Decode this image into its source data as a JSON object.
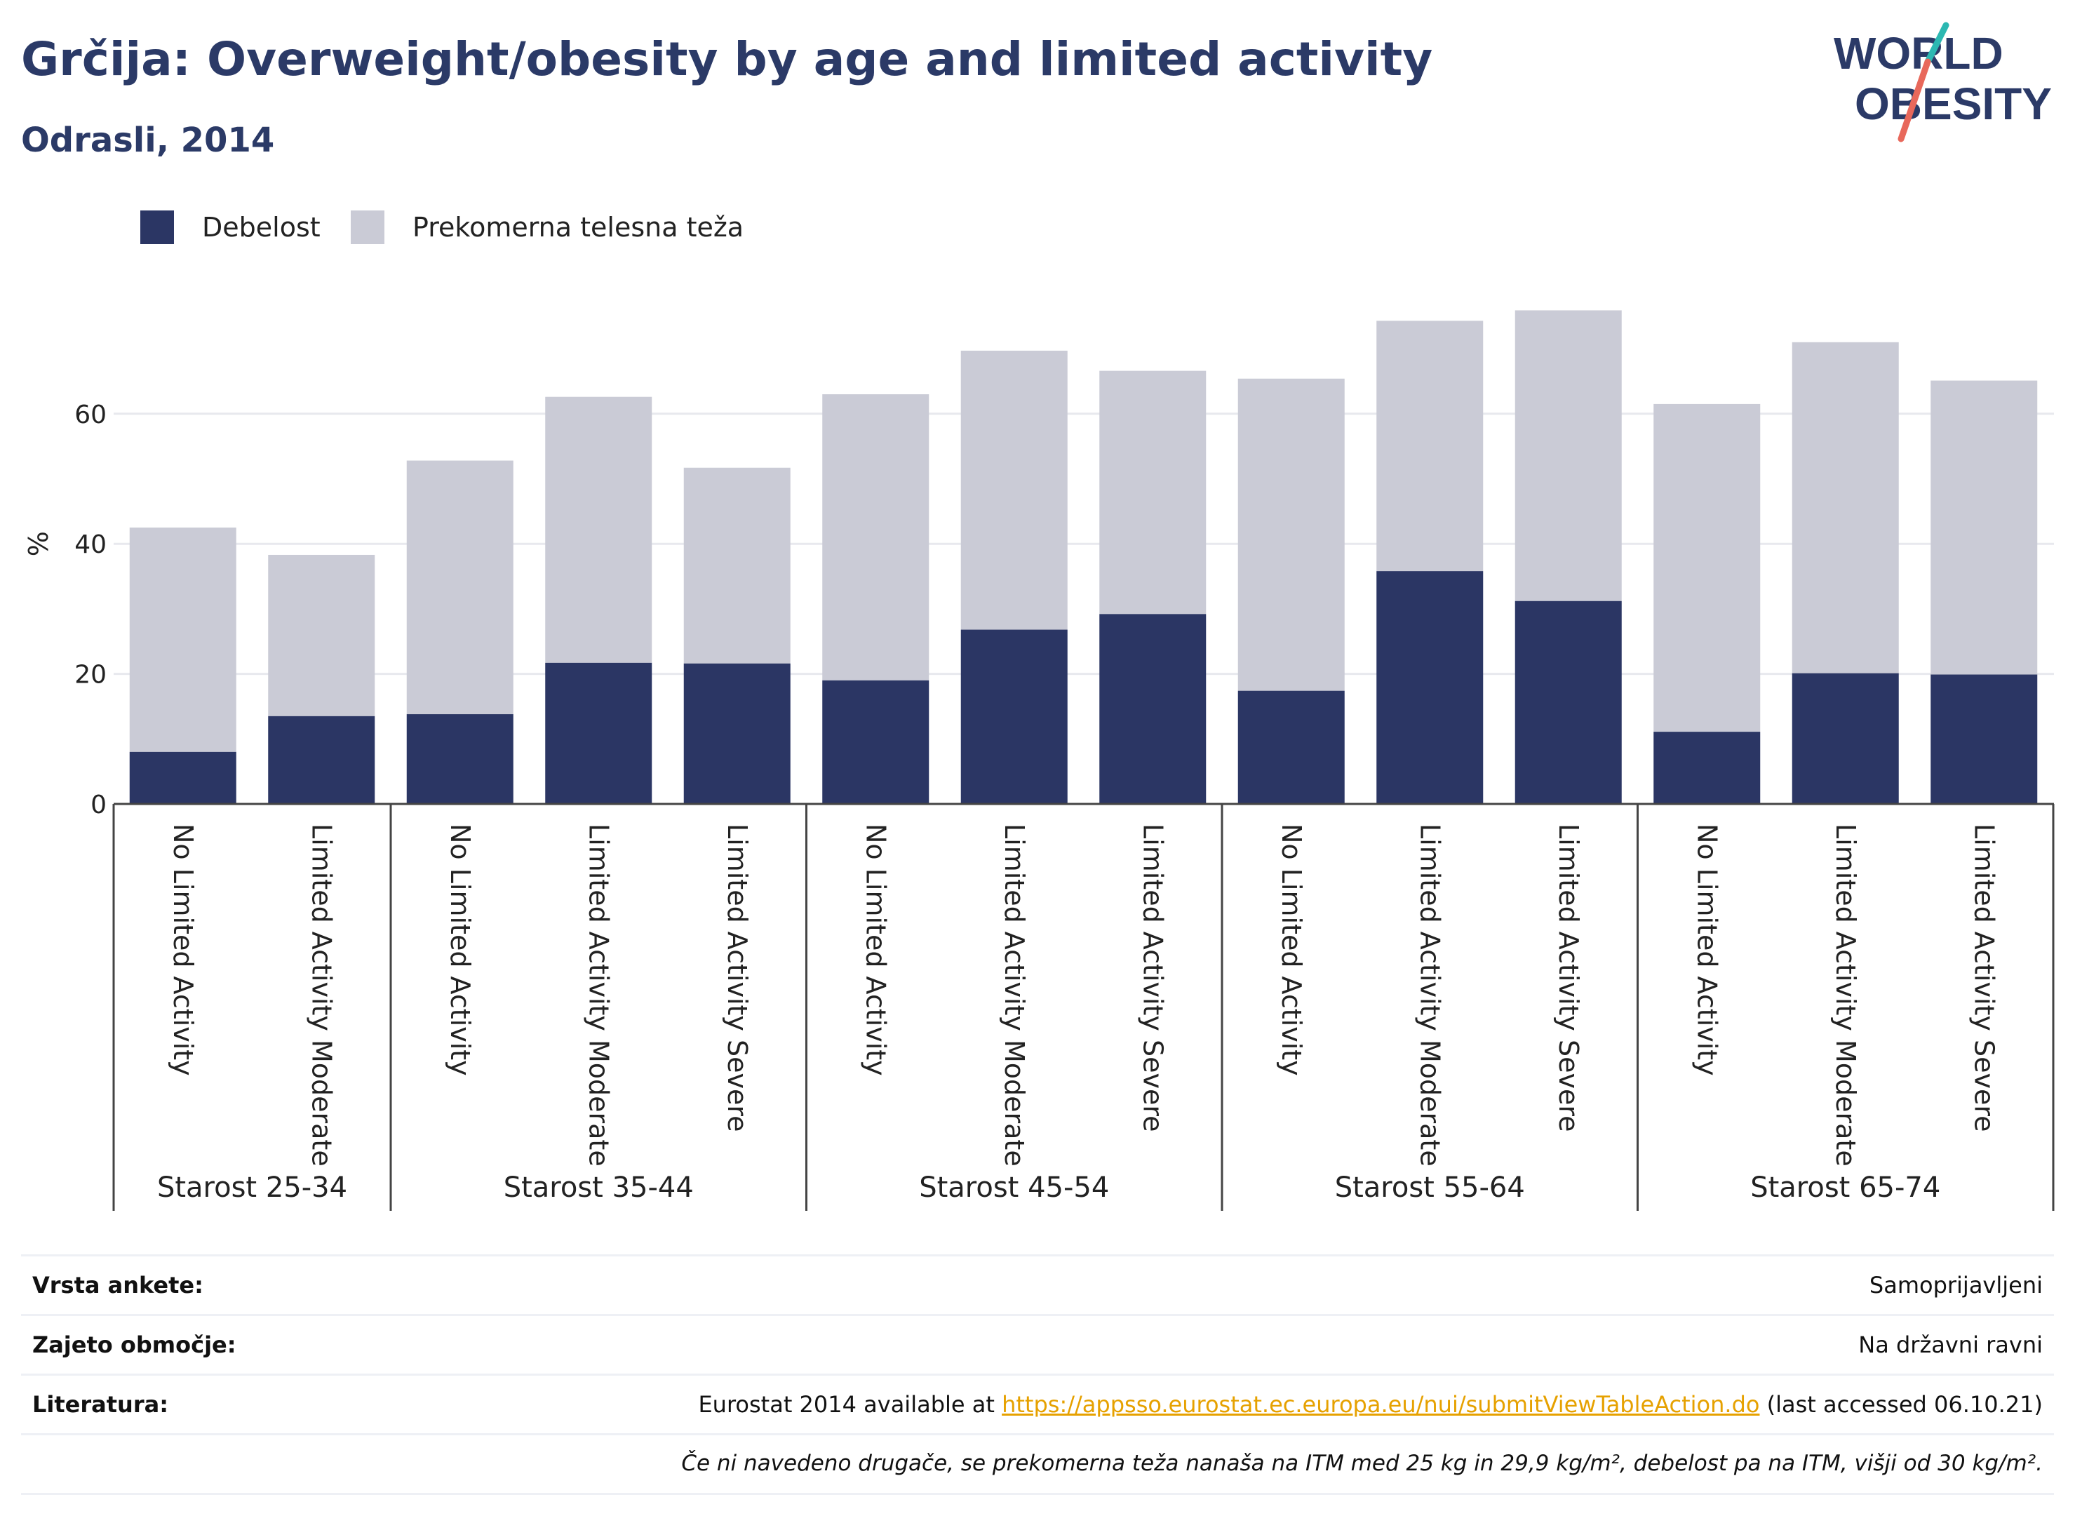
{
  "header": {
    "title": "Grčija: Overweight/obesity by age and limited activity",
    "subtitle": "Odrasli, 2014"
  },
  "logo": {
    "line1": "WORLD",
    "line2": "OBESITY"
  },
  "colors": {
    "obesity": "#2b3664",
    "overweight": "#cacbd6",
    "title": "#2b3a67",
    "link": "#e6a100"
  },
  "legend": {
    "obesity_label": "Debelost",
    "overweight_label": "Prekomerna telesna teža"
  },
  "chart_data": {
    "type": "bar",
    "stacked": true,
    "ylabel": "%",
    "ylim": [
      0,
      80
    ],
    "yticks": [
      0,
      20,
      40,
      60
    ],
    "grid": true,
    "legend_position": "top-left",
    "groups": [
      {
        "label": "Starost 25-34",
        "categories": [
          "No Limited Activity",
          "Limited Activity Moderate"
        ]
      },
      {
        "label": "Starost 35-44",
        "categories": [
          "No Limited Activity",
          "Limited Activity Moderate",
          "Limited Activity Severe"
        ]
      },
      {
        "label": "Starost 45-54",
        "categories": [
          "No Limited Activity",
          "Limited Activity Moderate",
          "Limited Activity Severe"
        ]
      },
      {
        "label": "Starost 55-64",
        "categories": [
          "No Limited Activity",
          "Limited Activity Moderate",
          "Limited Activity Severe"
        ]
      },
      {
        "label": "Starost 65-74",
        "categories": [
          "No Limited Activity",
          "Limited Activity Moderate",
          "Limited Activity Severe"
        ]
      }
    ],
    "series": [
      {
        "name": "Debelost",
        "values": [
          8.0,
          13.5,
          13.8,
          21.7,
          21.6,
          19.0,
          26.8,
          29.2,
          17.4,
          35.8,
          31.2,
          11.1,
          20.1,
          19.9
        ]
      },
      {
        "name": "Prekomerna telesna teža",
        "values": [
          34.5,
          24.8,
          39.0,
          40.9,
          30.1,
          44.0,
          42.9,
          37.4,
          48.0,
          38.5,
          44.7,
          50.4,
          50.9,
          45.2
        ]
      }
    ]
  },
  "info": {
    "survey_label": "Vrsta ankete:",
    "survey_value": "Samoprijavljeni",
    "coverage_label": "Zajeto območje:",
    "coverage_value": "Na državni ravni",
    "reference_label": "Literatura:",
    "reference_prefix": "Eurostat 2014 available at ",
    "reference_link": "https://appsso.eurostat.ec.europa.eu/nui/submitViewTableAction.do",
    "reference_suffix": " (last accessed 06.10.21)",
    "note": "Če ni navedeno drugače, se prekomerna teža nanaša na ITM med 25 kg in 29,9 kg/m², debelost pa na ITM, višji od 30 kg/m²."
  }
}
